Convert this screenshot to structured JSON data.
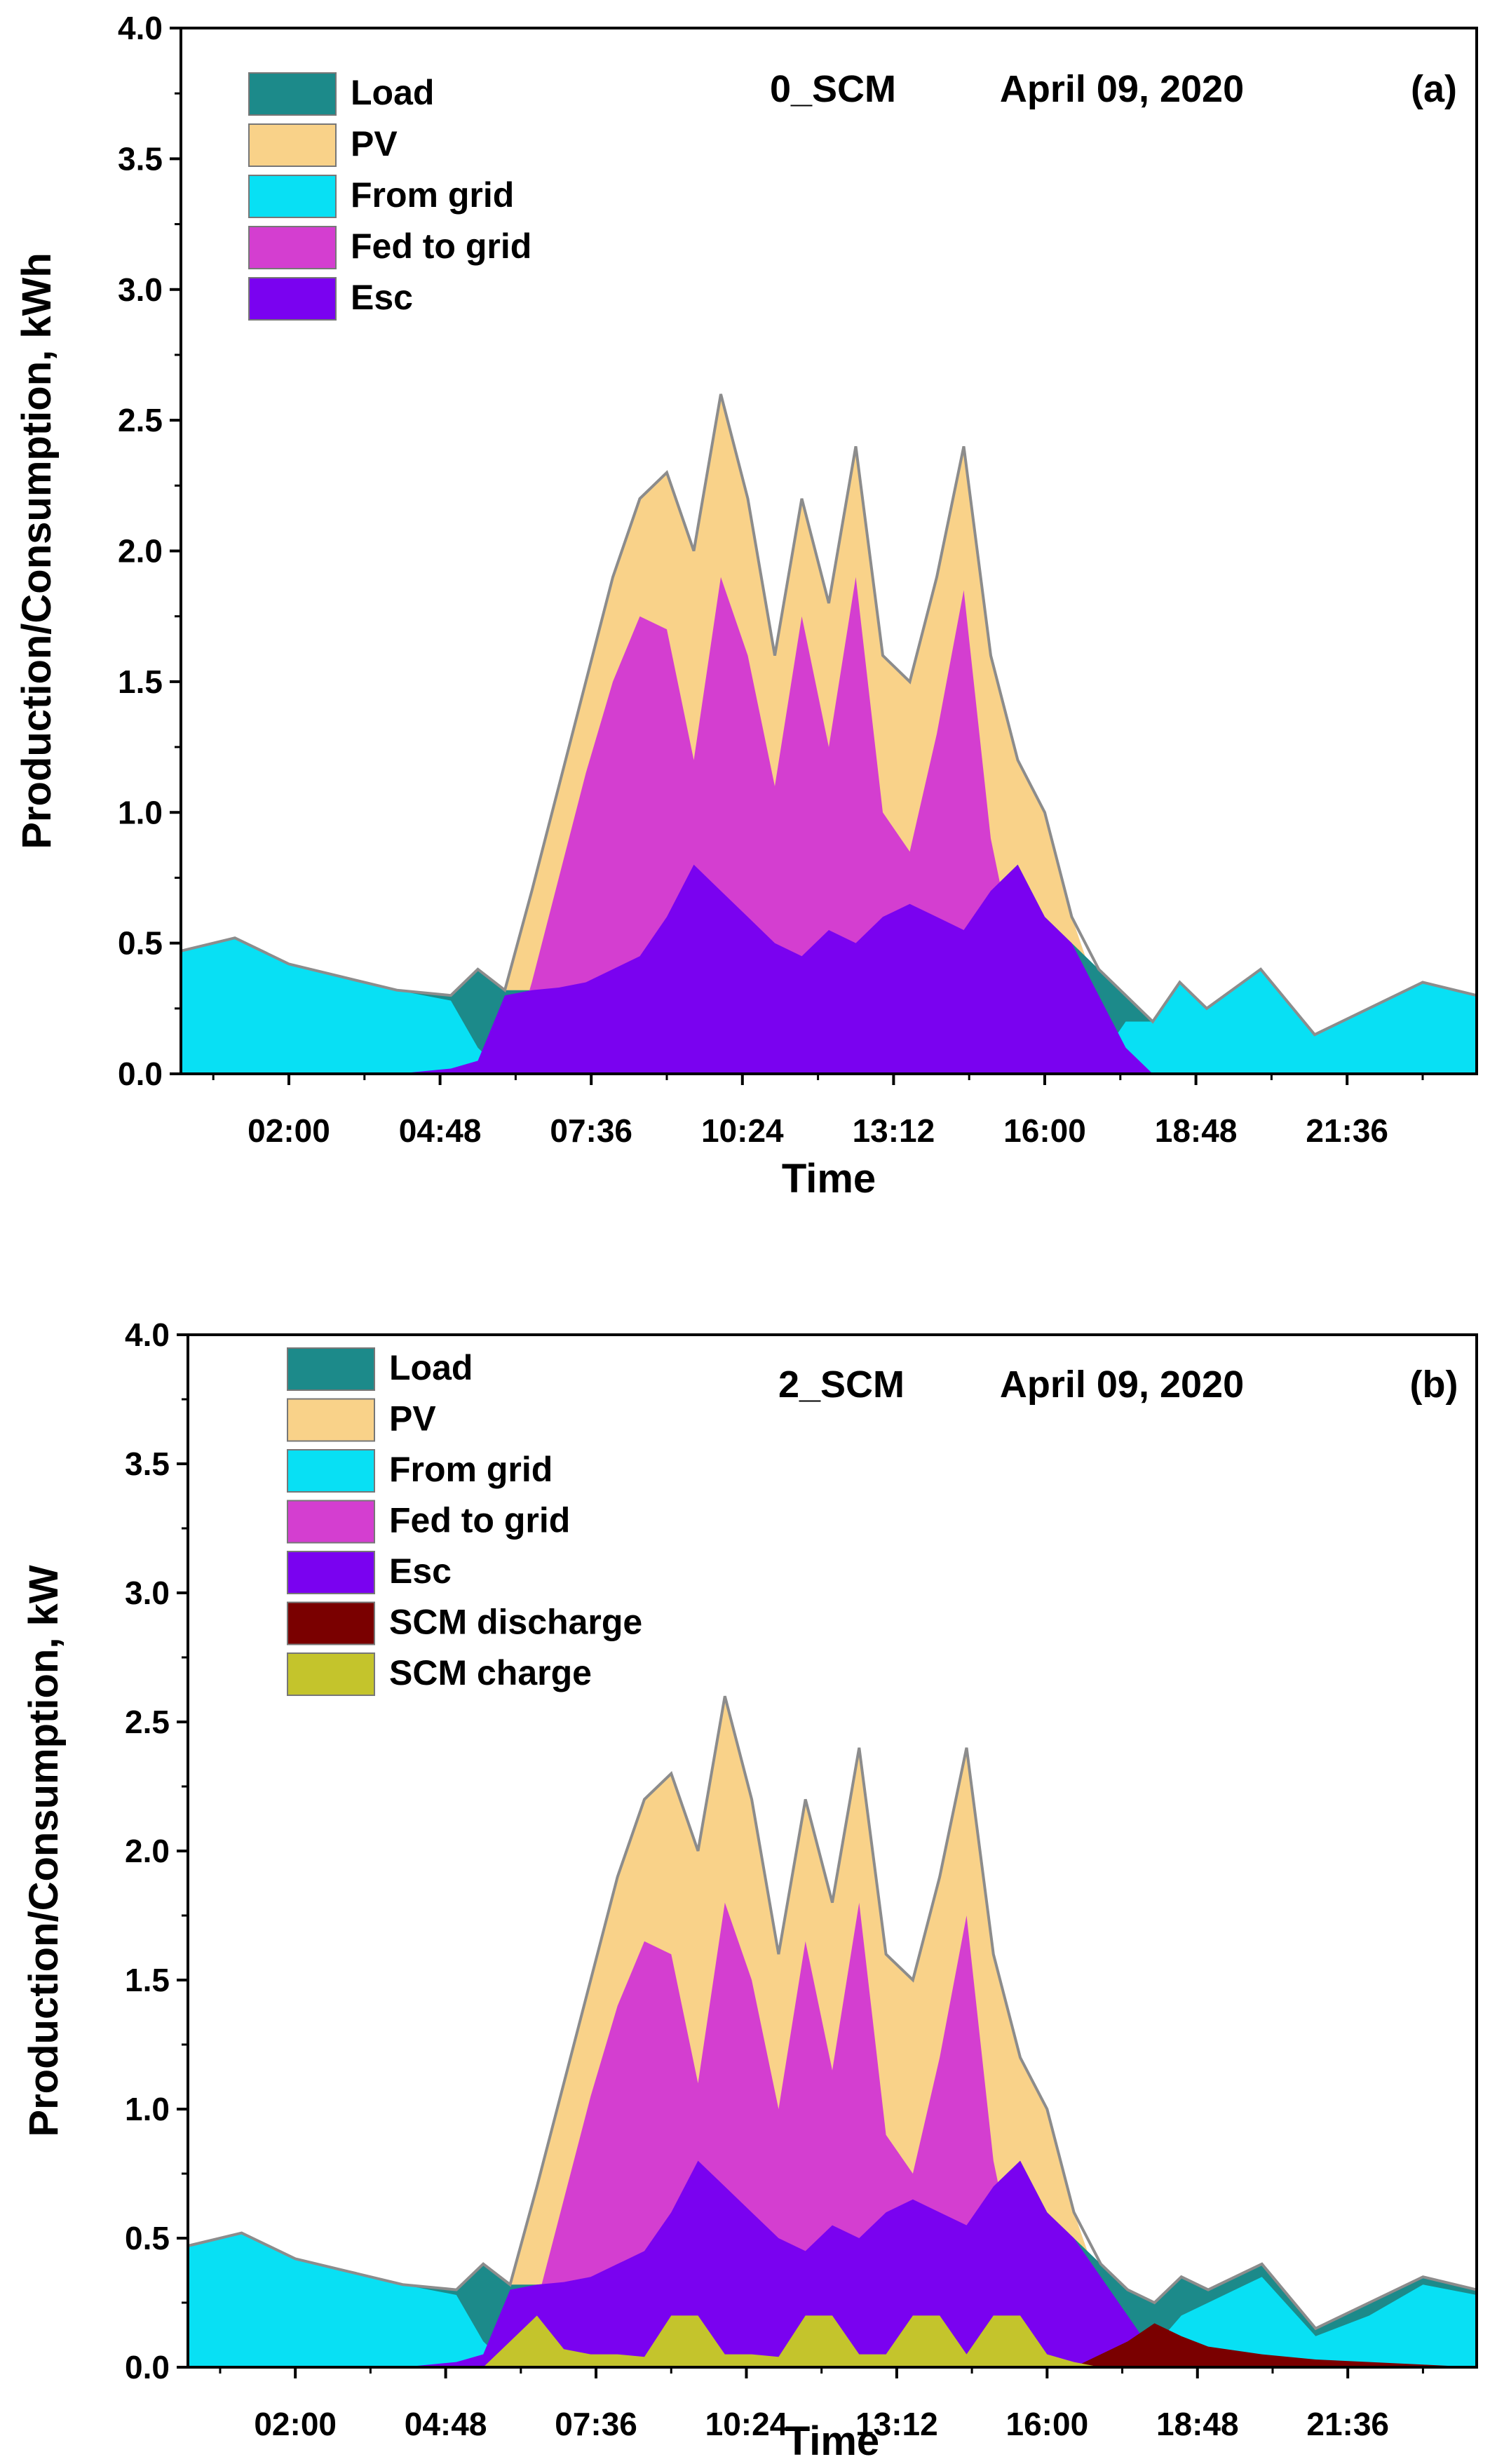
{
  "chart_data": [
    {
      "panel_label": "(a)",
      "type": "area",
      "title": "0_SCM",
      "date": "April 09, 2020",
      "xlabel": "Time",
      "ylabel": "Production/Consumption, kWh",
      "ylim": [
        0,
        4.0
      ],
      "yticks": [
        "0.0",
        "0.5",
        "1.0",
        "1.5",
        "2.0",
        "2.5",
        "3.0",
        "3.5",
        "4.0"
      ],
      "xlim_hours": [
        0,
        24
      ],
      "xticks": [
        {
          "label": "02:00",
          "hour": 2.0
        },
        {
          "label": "04:48",
          "hour": 4.8
        },
        {
          "label": "07:36",
          "hour": 7.6
        },
        {
          "label": "10:24",
          "hour": 10.4
        },
        {
          "label": "13:12",
          "hour": 13.2
        },
        {
          "label": "16:00",
          "hour": 16.0
        },
        {
          "label": "18:48",
          "hour": 18.8
        },
        {
          "label": "21:36",
          "hour": 21.6
        }
      ],
      "legend": [
        {
          "name": "Load",
          "color": "#1c8a8a"
        },
        {
          "name": "PV",
          "color": "#f9d289"
        },
        {
          "name": "From grid",
          "color": "#08e0f4"
        },
        {
          "name": "Fed to grid",
          "color": "#d43ed0"
        },
        {
          "name": "Esc",
          "color": "#7a02f0"
        }
      ],
      "x_hours": [
        0,
        1,
        2,
        3,
        4,
        5,
        5.5,
        6,
        6.5,
        7,
        7.5,
        8,
        8.5,
        9,
        9.5,
        10,
        10.5,
        11,
        11.5,
        12,
        12.5,
        13,
        13.5,
        14,
        14.5,
        15,
        15.5,
        16,
        16.5,
        17,
        17.5,
        18,
        18.5,
        19,
        20,
        21,
        22,
        23,
        24
      ],
      "series": [
        {
          "name": "Load",
          "values": [
            0.47,
            0.52,
            0.42,
            0.37,
            0.32,
            0.3,
            0.4,
            0.32,
            0.32,
            0.33,
            0.35,
            0.4,
            0.45,
            0.6,
            0.8,
            0.7,
            0.6,
            0.5,
            0.45,
            0.55,
            0.5,
            0.6,
            0.65,
            0.6,
            0.55,
            0.7,
            0.8,
            0.6,
            0.5,
            0.4,
            0.3,
            0.2,
            0.35,
            0.25,
            0.4,
            0.15,
            0.25,
            0.35,
            0.3
          ]
        },
        {
          "name": "PV",
          "values": [
            0,
            0,
            0,
            0,
            0,
            0,
            0.05,
            0.3,
            0.7,
            1.1,
            1.5,
            1.9,
            2.2,
            2.3,
            2.0,
            2.6,
            2.2,
            1.6,
            2.2,
            1.8,
            2.4,
            1.6,
            1.5,
            1.9,
            2.4,
            1.6,
            1.2,
            1.0,
            0.6,
            0.3,
            0.1,
            0,
            0,
            0,
            0,
            0,
            0,
            0,
            0
          ]
        },
        {
          "name": "From grid",
          "values": [
            0.47,
            0.52,
            0.42,
            0.37,
            0.32,
            0.28,
            0.1,
            0,
            0,
            0,
            0,
            0,
            0,
            0,
            0,
            0,
            0,
            0,
            0,
            0,
            0,
            0,
            0,
            0,
            0,
            0,
            0,
            0,
            0,
            0.05,
            0.2,
            0.2,
            0.35,
            0.25,
            0.4,
            0.15,
            0.25,
            0.35,
            0.3
          ]
        },
        {
          "name": "Fed to grid",
          "values": [
            0,
            0,
            0,
            0,
            0,
            0,
            0,
            0,
            0.35,
            0.75,
            1.15,
            1.5,
            1.75,
            1.7,
            1.2,
            1.9,
            1.6,
            1.1,
            1.75,
            1.25,
            1.9,
            1.0,
            0.85,
            1.3,
            1.85,
            0.9,
            0.4,
            0.4,
            0.1,
            0,
            0,
            0,
            0,
            0,
            0,
            0,
            0,
            0,
            0
          ]
        },
        {
          "name": "Esc",
          "values": [
            0,
            0,
            0,
            0,
            0,
            0.02,
            0.05,
            0.3,
            0.32,
            0.33,
            0.35,
            0.4,
            0.45,
            0.6,
            0.8,
            0.7,
            0.6,
            0.5,
            0.45,
            0.55,
            0.5,
            0.6,
            0.65,
            0.6,
            0.55,
            0.7,
            0.8,
            0.6,
            0.5,
            0.3,
            0.1,
            0,
            0,
            0,
            0,
            0,
            0,
            0,
            0
          ]
        }
      ]
    },
    {
      "panel_label": "(b)",
      "type": "area",
      "title": "2_SCM",
      "date": "April 09, 2020",
      "xlabel": "Time",
      "ylabel": "Production/Consumption, kW",
      "ylim": [
        0,
        4.0
      ],
      "yticks": [
        "0.0",
        "0.5",
        "1.0",
        "1.5",
        "2.0",
        "2.5",
        "3.0",
        "3.5",
        "4.0"
      ],
      "xlim_hours": [
        0,
        24
      ],
      "xticks": [
        {
          "label": "02:00",
          "hour": 2.0
        },
        {
          "label": "04:48",
          "hour": 4.8
        },
        {
          "label": "07:36",
          "hour": 7.6
        },
        {
          "label": "10:24",
          "hour": 10.4
        },
        {
          "label": "13:12",
          "hour": 13.2
        },
        {
          "label": "16:00",
          "hour": 16.0
        },
        {
          "label": "18:48",
          "hour": 18.8
        },
        {
          "label": "21:36",
          "hour": 21.6
        }
      ],
      "legend": [
        {
          "name": "Load",
          "color": "#1c8a8a"
        },
        {
          "name": "PV",
          "color": "#f9d289"
        },
        {
          "name": "From grid",
          "color": "#08e0f4"
        },
        {
          "name": "Fed to grid",
          "color": "#d43ed0"
        },
        {
          "name": "Esc",
          "color": "#7a02f0"
        },
        {
          "name": "SCM discharge",
          "color": "#7a0000"
        },
        {
          "name": "SCM charge",
          "color": "#c4c42c"
        }
      ],
      "x_hours": [
        0,
        1,
        2,
        3,
        4,
        5,
        5.5,
        6,
        6.5,
        7,
        7.5,
        8,
        8.5,
        9,
        9.5,
        10,
        10.5,
        11,
        11.5,
        12,
        12.5,
        13,
        13.5,
        14,
        14.5,
        15,
        15.5,
        16,
        16.5,
        17,
        17.5,
        18,
        18.5,
        19,
        20,
        21,
        22,
        23,
        24
      ],
      "series": [
        {
          "name": "Load",
          "values": [
            0.47,
            0.52,
            0.42,
            0.37,
            0.32,
            0.3,
            0.4,
            0.32,
            0.32,
            0.33,
            0.35,
            0.4,
            0.45,
            0.6,
            0.8,
            0.7,
            0.6,
            0.5,
            0.45,
            0.55,
            0.5,
            0.6,
            0.65,
            0.6,
            0.55,
            0.7,
            0.8,
            0.6,
            0.5,
            0.4,
            0.3,
            0.25,
            0.35,
            0.3,
            0.4,
            0.15,
            0.25,
            0.35,
            0.3
          ]
        },
        {
          "name": "PV",
          "values": [
            0,
            0,
            0,
            0,
            0,
            0,
            0.05,
            0.3,
            0.7,
            1.1,
            1.5,
            1.9,
            2.2,
            2.3,
            2.0,
            2.6,
            2.2,
            1.6,
            2.2,
            1.8,
            2.4,
            1.6,
            1.5,
            1.9,
            2.4,
            1.6,
            1.2,
            1.0,
            0.6,
            0.3,
            0.1,
            0,
            0,
            0,
            0,
            0,
            0,
            0,
            0
          ]
        },
        {
          "name": "From grid",
          "values": [
            0.47,
            0.52,
            0.42,
            0.37,
            0.32,
            0.28,
            0.1,
            0,
            0,
            0,
            0,
            0,
            0,
            0,
            0,
            0,
            0,
            0,
            0,
            0,
            0,
            0,
            0,
            0,
            0,
            0,
            0,
            0,
            0,
            0,
            0.05,
            0.08,
            0.2,
            0.25,
            0.35,
            0.12,
            0.2,
            0.32,
            0.28
          ]
        },
        {
          "name": "Fed to grid",
          "values": [
            0,
            0,
            0,
            0,
            0,
            0,
            0,
            0,
            0.25,
            0.65,
            1.05,
            1.4,
            1.65,
            1.6,
            1.1,
            1.8,
            1.5,
            1.0,
            1.65,
            1.15,
            1.8,
            0.9,
            0.75,
            1.2,
            1.75,
            0.8,
            0.3,
            0.3,
            0.05,
            0,
            0,
            0,
            0,
            0,
            0,
            0,
            0,
            0,
            0
          ]
        },
        {
          "name": "Esc",
          "values": [
            0,
            0,
            0,
            0,
            0,
            0.02,
            0.05,
            0.3,
            0.32,
            0.33,
            0.35,
            0.4,
            0.45,
            0.6,
            0.8,
            0.7,
            0.6,
            0.5,
            0.45,
            0.55,
            0.5,
            0.6,
            0.65,
            0.6,
            0.55,
            0.7,
            0.8,
            0.6,
            0.5,
            0.35,
            0.2,
            0.05,
            0,
            0,
            0,
            0,
            0,
            0,
            0
          ]
        },
        {
          "name": "SCM discharge",
          "values": [
            0,
            0,
            0,
            0,
            0,
            0,
            0,
            0,
            0,
            0,
            0,
            0,
            0,
            0,
            0,
            0,
            0,
            0,
            0,
            0,
            0,
            0,
            0,
            0,
            0,
            0,
            0,
            0,
            0,
            0.05,
            0.1,
            0.17,
            0.12,
            0.08,
            0.05,
            0.03,
            0.02,
            0.01,
            0
          ]
        },
        {
          "name": "SCM charge",
          "values": [
            0,
            0,
            0,
            0,
            0,
            0,
            0,
            0.1,
            0.2,
            0.07,
            0.05,
            0.05,
            0.04,
            0.2,
            0.2,
            0.05,
            0.05,
            0.04,
            0.2,
            0.2,
            0.05,
            0.05,
            0.2,
            0.2,
            0.05,
            0.2,
            0.2,
            0.05,
            0.02,
            0,
            0,
            0,
            0,
            0,
            0,
            0,
            0,
            0,
            0
          ]
        }
      ]
    }
  ]
}
